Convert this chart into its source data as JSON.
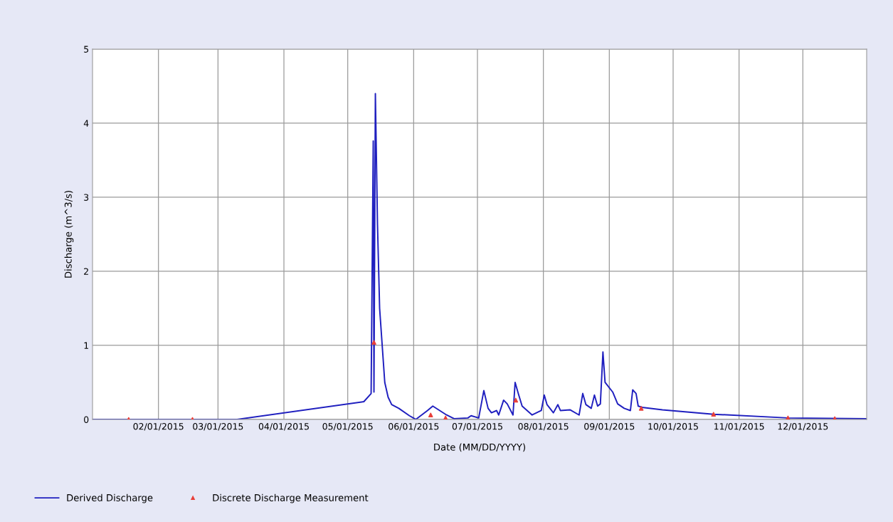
{
  "chart_data": {
    "type": "line",
    "xlabel": "Date (MM/DD/YYYY)",
    "ylabel": "Discharge (m^3/s)",
    "xlim": [
      "2015-01-01",
      "2015-12-31"
    ],
    "xticks": [
      {
        "value": "2015-02-01",
        "label": "02/01/2015"
      },
      {
        "value": "2015-03-01",
        "label": "03/01/2015"
      },
      {
        "value": "2015-04-01",
        "label": "04/01/2015"
      },
      {
        "value": "2015-05-01",
        "label": "05/01/2015"
      },
      {
        "value": "2015-06-01",
        "label": "06/01/2015"
      },
      {
        "value": "2015-07-01",
        "label": "07/01/2015"
      },
      {
        "value": "2015-08-01",
        "label": "08/01/2015"
      },
      {
        "value": "2015-09-01",
        "label": "09/01/2015"
      },
      {
        "value": "2015-10-01",
        "label": "10/01/2015"
      },
      {
        "value": "2015-11-01",
        "label": "11/01/2015"
      },
      {
        "value": "2015-12-01",
        "label": "12/01/2015"
      }
    ],
    "ylim": [
      0,
      5
    ],
    "yticks": [
      0,
      1,
      2,
      3,
      4,
      5
    ],
    "grid": true,
    "legend": "bottom left",
    "series": [
      {
        "name": "Derived Discharge",
        "color": "#1f1fbf",
        "marker": "none",
        "line_style": "solid",
        "x": [
          "2015-01-01",
          "2015-03-10",
          "2015-05-08T14:00",
          "2015-05-12",
          "2015-05-13",
          "2015-05-13T08:00",
          "2015-05-14",
          "2015-05-15",
          "2015-05-16",
          "2015-05-18T10:00",
          "2015-05-20",
          "2015-05-21T16:00",
          "2015-05-25",
          "2015-05-30",
          "2015-06-02",
          "2015-06-07T12:00",
          "2015-06-10",
          "2015-06-16T12:00",
          "2015-06-20",
          "2015-06-26T12:00",
          "2015-06-28",
          "2015-07-01T14:00",
          "2015-07-04",
          "2015-07-06",
          "2015-07-07T14:00",
          "2015-07-10",
          "2015-07-11",
          "2015-07-13T07:00",
          "2015-07-15",
          "2015-07-17T17:00",
          "2015-07-18T17:00",
          "2015-07-20T07:00",
          "2015-07-22",
          "2015-07-26T17:00",
          "2015-07-31",
          "2015-08-01T10:00",
          "2015-08-02T17:00",
          "2015-08-05T17:00",
          "2015-08-07T19:00",
          "2015-08-09",
          "2015-08-13T12:00",
          "2015-08-17T19:00",
          "2015-08-19T12:00",
          "2015-08-21",
          "2015-08-23T12:00",
          "2015-08-25",
          "2015-08-26T12:00",
          "2015-08-27T19:00",
          "2015-08-29",
          "2015-08-30",
          "2015-09-02T14:00",
          "2015-09-04T22:00",
          "2015-09-08",
          "2015-09-10T22:00",
          "2015-09-12",
          "2015-09-13T14:00",
          "2015-09-14T14:00",
          "2015-09-17",
          "2015-09-26",
          "2015-10-20",
          "2015-11-24",
          "2015-12-31"
        ],
        "values": [
          0.0,
          0.0,
          0.24,
          0.35,
          3.76,
          0.37,
          4.4,
          2.63,
          1.5,
          0.5,
          0.3,
          0.2,
          0.15,
          0.05,
          0.0,
          0.12,
          0.18,
          0.06,
          0.01,
          0.02,
          0.05,
          0.02,
          0.39,
          0.15,
          0.09,
          0.12,
          0.06,
          0.26,
          0.21,
          0.06,
          0.5,
          0.34,
          0.18,
          0.06,
          0.12,
          0.33,
          0.2,
          0.09,
          0.2,
          0.12,
          0.13,
          0.06,
          0.35,
          0.2,
          0.15,
          0.33,
          0.18,
          0.21,
          0.91,
          0.5,
          0.37,
          0.21,
          0.15,
          0.12,
          0.4,
          0.35,
          0.18,
          0.16,
          0.13,
          0.07,
          0.02,
          0.01
        ]
      },
      {
        "name": "Discrete Discharge Measurement",
        "type": "scatter",
        "color": "#e8403a",
        "marker": "triangle",
        "x": [
          "2015-01-18",
          "2015-02-17",
          "2015-05-13T08:00",
          "2015-06-09",
          "2015-06-16",
          "2015-07-19",
          "2015-09-16",
          "2015-10-20",
          "2015-11-24",
          "2015-12-16"
        ],
        "values": [
          0,
          0,
          1.04,
          0.06,
          0.02,
          0.26,
          0.15,
          0.07,
          0.02,
          0.01
        ]
      }
    ]
  }
}
